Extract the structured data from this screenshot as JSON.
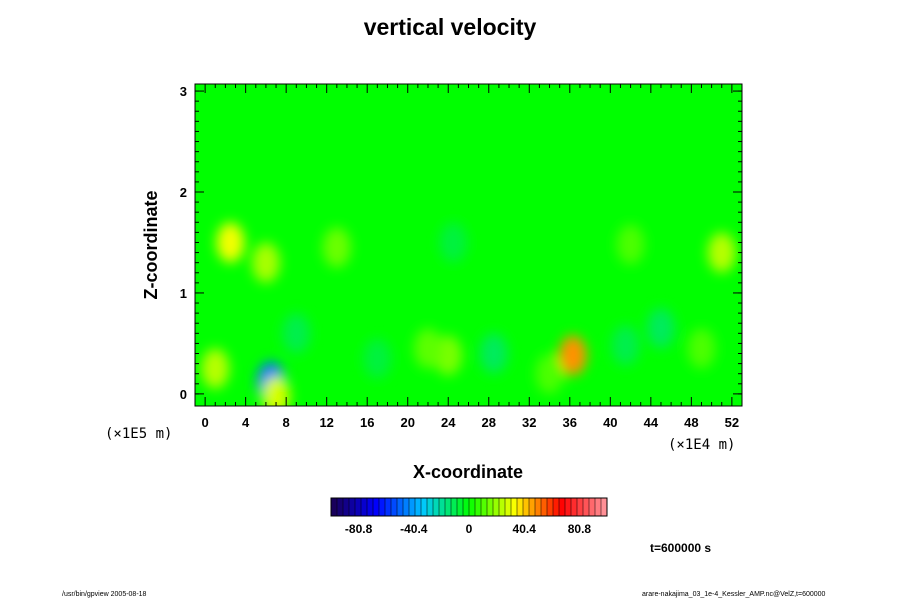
{
  "chart_data": {
    "type": "heatmap",
    "title": "vertical velocity",
    "xlabel": "X-coordinate",
    "ylabel": "Z-coordinate",
    "x_scale_label": "(×1E4 m)",
    "y_scale_label": "(×1E5 m)",
    "x_ticks": [
      "0",
      "4",
      "8",
      "12",
      "16",
      "20",
      "24",
      "28",
      "32",
      "36",
      "40",
      "44",
      "48",
      "52"
    ],
    "y_ticks": [
      "0",
      "1",
      "2",
      "3"
    ],
    "xlim": [
      -1,
      53
    ],
    "ylim": [
      -0.12,
      3.07
    ],
    "colorbar": {
      "ticks": [
        "-80.8",
        "-40.4",
        "0",
        "40.4",
        "80.8"
      ],
      "range": [
        -101,
        101
      ],
      "colors": [
        "#1a0050",
        "#0000ff",
        "#00c8ff",
        "#00ff00",
        "#ffff00",
        "#ff0000",
        "#ff9aa0"
      ]
    },
    "background_value": 0,
    "features": [
      {
        "x": 2.5,
        "z": 1.5,
        "value": 32
      },
      {
        "x": 6.0,
        "z": 1.3,
        "value": 22
      },
      {
        "x": 1.0,
        "z": 0.25,
        "value": 24
      },
      {
        "x": 6.5,
        "z": 0.12,
        "value": -48
      },
      {
        "x": 7.0,
        "z": -0.02,
        "value": 28
      },
      {
        "x": 13.0,
        "z": 1.45,
        "value": 14
      },
      {
        "x": 24.0,
        "z": 0.38,
        "value": 16
      },
      {
        "x": 22.0,
        "z": 0.45,
        "value": 12
      },
      {
        "x": 28.5,
        "z": 0.4,
        "value": -12
      },
      {
        "x": 36.3,
        "z": 0.38,
        "value": 48
      },
      {
        "x": 41.5,
        "z": 0.48,
        "value": -10
      },
      {
        "x": 45.0,
        "z": 0.65,
        "value": -12
      },
      {
        "x": 49.0,
        "z": 0.45,
        "value": 10
      },
      {
        "x": 51.0,
        "z": 1.4,
        "value": 24
      },
      {
        "x": 42.0,
        "z": 1.48,
        "value": 10
      },
      {
        "x": 24.5,
        "z": 1.5,
        "value": -8
      },
      {
        "x": 9.0,
        "z": 0.6,
        "value": -10
      },
      {
        "x": 17.0,
        "z": 0.35,
        "value": -8
      },
      {
        "x": 34.0,
        "z": 0.2,
        "value": 10
      }
    ],
    "time_label": "t=600000 s"
  },
  "footer": {
    "left": "/usr/bin/gpview 2005-08-18",
    "right": "arare-nakajima_03_1e-4_Kessler_AMP.nc@VelZ,t=600000"
  }
}
